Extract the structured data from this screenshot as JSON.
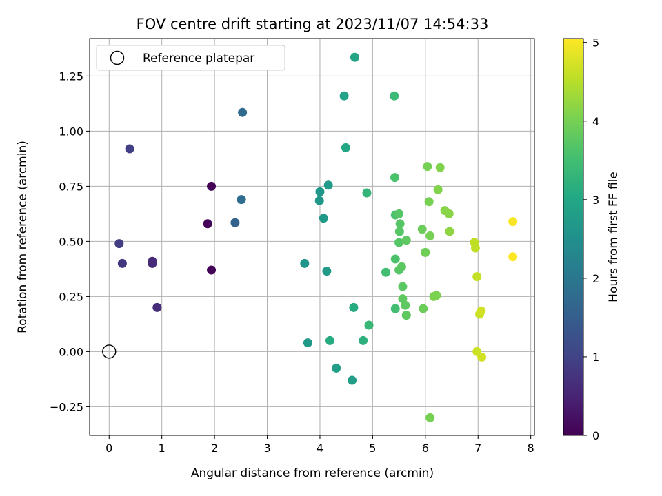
{
  "chart_data": {
    "type": "scatter",
    "title": "FOV centre drift starting at 2023/11/07 14:54:33",
    "xlabel": "Angular distance from reference (arcmin)",
    "ylabel": "Rotation from reference (arcmin)",
    "xlim": [
      -0.37,
      8.07
    ],
    "ylim": [
      -0.38,
      1.42
    ],
    "xticks": [
      0,
      1,
      2,
      3,
      4,
      5,
      6,
      7,
      8
    ],
    "xtick_labels": [
      "0",
      "1",
      "2",
      "3",
      "4",
      "5",
      "6",
      "7",
      "8"
    ],
    "yticks": [
      -0.25,
      0.0,
      0.25,
      0.5,
      0.75,
      1.0,
      1.25
    ],
    "ytick_labels": [
      "−0.25",
      "0.00",
      "0.25",
      "0.50",
      "0.75",
      "1.00",
      "1.25"
    ],
    "grid": true,
    "legend": {
      "position": "top-left",
      "entries": [
        "Reference platepar"
      ]
    },
    "reference_point": {
      "x": 0,
      "y": 0,
      "label": "Reference platepar"
    },
    "colorbar": {
      "label": "Hours from first FF file",
      "range": [
        0,
        5.05
      ],
      "ticks": [
        0,
        1,
        2,
        3,
        4,
        5
      ],
      "tick_labels": [
        "0",
        "1",
        "2",
        "3",
        "4",
        "5"
      ],
      "colormap": "viridis"
    },
    "points": [
      {
        "x": 1.87,
        "y": 0.58,
        "c": 0.05
      },
      {
        "x": 1.94,
        "y": 0.75,
        "c": 0.05
      },
      {
        "x": 1.94,
        "y": 0.37,
        "c": 0.05
      },
      {
        "x": 0.82,
        "y": 0.41,
        "c": 0.6
      },
      {
        "x": 0.82,
        "y": 0.4,
        "c": 0.6
      },
      {
        "x": 0.91,
        "y": 0.2,
        "c": 0.65
      },
      {
        "x": 0.25,
        "y": 0.4,
        "c": 0.8
      },
      {
        "x": 0.19,
        "y": 0.49,
        "c": 0.9
      },
      {
        "x": 0.39,
        "y": 0.92,
        "c": 0.95
      },
      {
        "x": 2.39,
        "y": 0.585,
        "c": 1.6
      },
      {
        "x": 2.53,
        "y": 1.085,
        "c": 1.75
      },
      {
        "x": 2.51,
        "y": 0.69,
        "c": 1.8
      },
      {
        "x": 3.71,
        "y": 0.4,
        "c": 2.6
      },
      {
        "x": 4.0,
        "y": 0.725,
        "c": 2.65
      },
      {
        "x": 3.99,
        "y": 0.685,
        "c": 2.65
      },
      {
        "x": 4.07,
        "y": 0.605,
        "c": 2.7
      },
      {
        "x": 4.16,
        "y": 0.755,
        "c": 2.75
      },
      {
        "x": 4.13,
        "y": 0.365,
        "c": 2.75
      },
      {
        "x": 3.77,
        "y": 0.04,
        "c": 2.7
      },
      {
        "x": 4.31,
        "y": -0.075,
        "c": 2.8
      },
      {
        "x": 4.61,
        "y": -0.13,
        "c": 2.8
      },
      {
        "x": 4.46,
        "y": 1.16,
        "c": 2.9
      },
      {
        "x": 4.66,
        "y": 1.335,
        "c": 2.95
      },
      {
        "x": 4.49,
        "y": 0.925,
        "c": 3.0
      },
      {
        "x": 4.19,
        "y": 0.05,
        "c": 3.1
      },
      {
        "x": 4.64,
        "y": 0.2,
        "c": 3.1
      },
      {
        "x": 4.82,
        "y": 0.05,
        "c": 3.2
      },
      {
        "x": 4.89,
        "y": 0.72,
        "c": 3.3
      },
      {
        "x": 4.93,
        "y": 0.12,
        "c": 3.35
      },
      {
        "x": 5.41,
        "y": 1.16,
        "c": 3.4
      },
      {
        "x": 5.25,
        "y": 0.36,
        "c": 3.5
      },
      {
        "x": 5.43,
        "y": 0.195,
        "c": 3.5
      },
      {
        "x": 5.42,
        "y": 0.79,
        "c": 3.6
      },
      {
        "x": 5.43,
        "y": 0.62,
        "c": 3.6
      },
      {
        "x": 5.43,
        "y": 0.42,
        "c": 3.6
      },
      {
        "x": 5.5,
        "y": 0.625,
        "c": 3.7
      },
      {
        "x": 5.52,
        "y": 0.58,
        "c": 3.7
      },
      {
        "x": 5.51,
        "y": 0.545,
        "c": 3.7
      },
      {
        "x": 5.5,
        "y": 0.495,
        "c": 3.7
      },
      {
        "x": 5.5,
        "y": 0.37,
        "c": 3.7
      },
      {
        "x": 5.55,
        "y": 0.385,
        "c": 3.75
      },
      {
        "x": 5.57,
        "y": 0.295,
        "c": 3.75
      },
      {
        "x": 5.57,
        "y": 0.24,
        "c": 3.8
      },
      {
        "x": 5.62,
        "y": 0.21,
        "c": 3.8
      },
      {
        "x": 5.64,
        "y": 0.165,
        "c": 3.8
      },
      {
        "x": 5.64,
        "y": 0.505,
        "c": 3.8
      },
      {
        "x": 5.94,
        "y": 0.555,
        "c": 3.9
      },
      {
        "x": 5.96,
        "y": 0.195,
        "c": 3.9
      },
      {
        "x": 6.0,
        "y": 0.45,
        "c": 3.95
      },
      {
        "x": 6.04,
        "y": 0.84,
        "c": 4.0
      },
      {
        "x": 6.07,
        "y": 0.68,
        "c": 4.0
      },
      {
        "x": 6.09,
        "y": 0.525,
        "c": 4.0
      },
      {
        "x": 6.09,
        "y": -0.3,
        "c": 4.0
      },
      {
        "x": 6.16,
        "y": 0.25,
        "c": 4.05
      },
      {
        "x": 6.21,
        "y": 0.255,
        "c": 4.05
      },
      {
        "x": 6.24,
        "y": 0.735,
        "c": 4.1
      },
      {
        "x": 6.28,
        "y": 0.835,
        "c": 4.1
      },
      {
        "x": 6.37,
        "y": 0.64,
        "c": 4.15
      },
      {
        "x": 6.45,
        "y": 0.625,
        "c": 4.15
      },
      {
        "x": 6.46,
        "y": 0.545,
        "c": 4.2
      },
      {
        "x": 6.93,
        "y": 0.495,
        "c": 4.55
      },
      {
        "x": 6.95,
        "y": 0.47,
        "c": 4.55
      },
      {
        "x": 6.98,
        "y": 0.34,
        "c": 4.6
      },
      {
        "x": 6.98,
        "y": -0.0,
        "c": 4.65
      },
      {
        "x": 7.03,
        "y": 0.17,
        "c": 4.65
      },
      {
        "x": 7.06,
        "y": 0.185,
        "c": 4.7
      },
      {
        "x": 7.07,
        "y": -0.025,
        "c": 4.7
      },
      {
        "x": 7.66,
        "y": 0.59,
        "c": 5.0
      },
      {
        "x": 7.66,
        "y": 0.43,
        "c": 5.05
      }
    ]
  }
}
